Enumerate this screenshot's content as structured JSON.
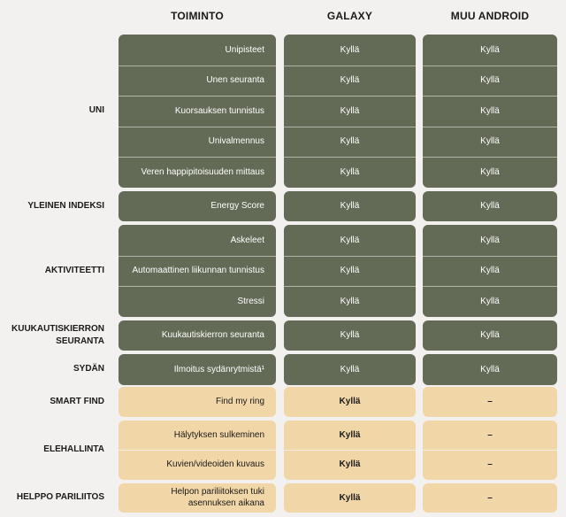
{
  "headers": {
    "feature": "TOIMINTO",
    "galaxy": "GALAXY",
    "other": "MUU ANDROID"
  },
  "green_groups": [
    {
      "category": "UNI",
      "rows": [
        {
          "feature": "Unipisteet",
          "galaxy": "Kyllä",
          "other": "Kyllä"
        },
        {
          "feature": "Unen seuranta",
          "galaxy": "Kyllä",
          "other": "Kyllä"
        },
        {
          "feature": "Kuorsauksen tunnistus",
          "galaxy": "Kyllä",
          "other": "Kyllä"
        },
        {
          "feature": "Univalmennus",
          "galaxy": "Kyllä",
          "other": "Kyllä"
        },
        {
          "feature": "Veren happipitoisuuden mittaus",
          "galaxy": "Kyllä",
          "other": "Kyllä"
        }
      ]
    },
    {
      "category": "YLEINEN INDEKSI",
      "rows": [
        {
          "feature": "Energy Score",
          "galaxy": "Kyllä",
          "other": "Kyllä"
        }
      ]
    },
    {
      "category": "AKTIVITEETTI",
      "rows": [
        {
          "feature": "Askeleet",
          "galaxy": "Kyllä",
          "other": "Kyllä"
        },
        {
          "feature": "Automaattinen liikunnan tunnistus",
          "galaxy": "Kyllä",
          "other": "Kyllä"
        },
        {
          "feature": "Stressi",
          "galaxy": "Kyllä",
          "other": "Kyllä"
        }
      ]
    },
    {
      "category": "KUUKAUTISKIERRON SEURANTA",
      "rows": [
        {
          "feature": "Kuukautiskierron seuranta",
          "galaxy": "Kyllä",
          "other": "Kyllä"
        }
      ]
    },
    {
      "category": "SYDÄN",
      "rows": [
        {
          "feature": "Ilmoitus sydänrytmistä¹",
          "galaxy": "Kyllä",
          "other": "Kyllä"
        }
      ]
    }
  ],
  "tan_groups": [
    {
      "category": "SMART FIND",
      "rows": [
        {
          "feature": "Find my ring",
          "galaxy": "Kyllä",
          "other": "–"
        }
      ]
    },
    {
      "category": "ELEHALLINTA",
      "rows": [
        {
          "feature": "Hälytyksen sulkeminen",
          "galaxy": "Kyllä",
          "other": "–"
        },
        {
          "feature": "Kuvien/videoiden kuvaus",
          "galaxy": "Kyllä",
          "other": "–"
        }
      ]
    },
    {
      "category": "HELPPO PARILIITOS",
      "rows": [
        {
          "feature": "Helpon pariliitoksen tuki asennuksen aikana",
          "galaxy": "Kyllä",
          "other": "–"
        }
      ]
    }
  ],
  "colors": {
    "green_panel": "#636a56",
    "tan_panel": "#f1d6a8",
    "background": "#f3f1ef"
  }
}
